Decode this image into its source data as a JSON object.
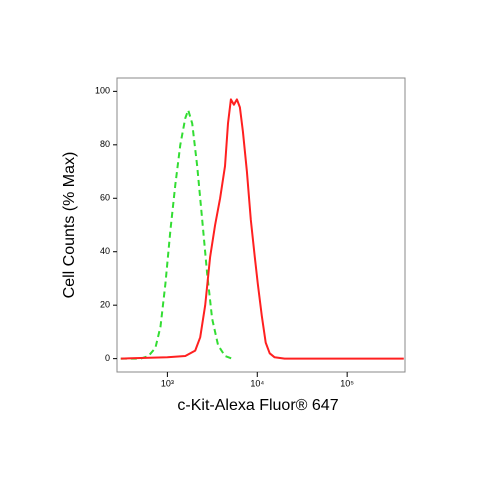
{
  "chart_data": {
    "type": "line",
    "log_x": true,
    "x_label": "c-Kit-Alexa Fluor® 647",
    "y_label": "Cell Counts (% Max)",
    "xlim": [
      275,
      440000
    ],
    "ylim": [
      -5,
      105
    ],
    "xticks": [
      {
        "value": 1000,
        "label": "10³"
      },
      {
        "value": 10000,
        "label": "10⁴"
      },
      {
        "value": 100000,
        "label": "10⁵"
      }
    ],
    "yticks": [
      0,
      20,
      40,
      60,
      80,
      100
    ],
    "series": [
      {
        "color": "#33dd33",
        "dashed": true,
        "x": [
          303,
          503,
          617,
          736,
          838,
          951,
          1080,
          1225,
          1392,
          1580,
          1706,
          1889,
          2145,
          2436,
          2767,
          3142,
          3661,
          4378,
          5228
        ],
        "values": [
          0,
          0,
          1,
          4,
          12,
          28,
          48,
          65,
          80,
          90,
          93,
          88,
          72,
          52,
          32,
          15,
          5,
          1,
          0
        ]
      },
      {
        "color": "#ff2020",
        "dashed": false,
        "x": [
          303,
          1000,
          1580,
          2038,
          2316,
          2632,
          2988,
          3392,
          3855,
          4378,
          4721,
          5090,
          5490,
          5931,
          6408,
          6920,
          7656,
          8472,
          9374,
          10130,
          11220,
          12410,
          13740,
          15600,
          20130,
          426600
        ],
        "values": [
          0,
          0.5,
          1,
          3,
          8,
          20,
          38,
          50,
          60,
          72,
          88,
          97,
          95,
          97,
          94,
          85,
          70,
          52,
          38,
          28,
          16,
          6,
          2,
          0.5,
          0,
          0
        ]
      }
    ]
  }
}
